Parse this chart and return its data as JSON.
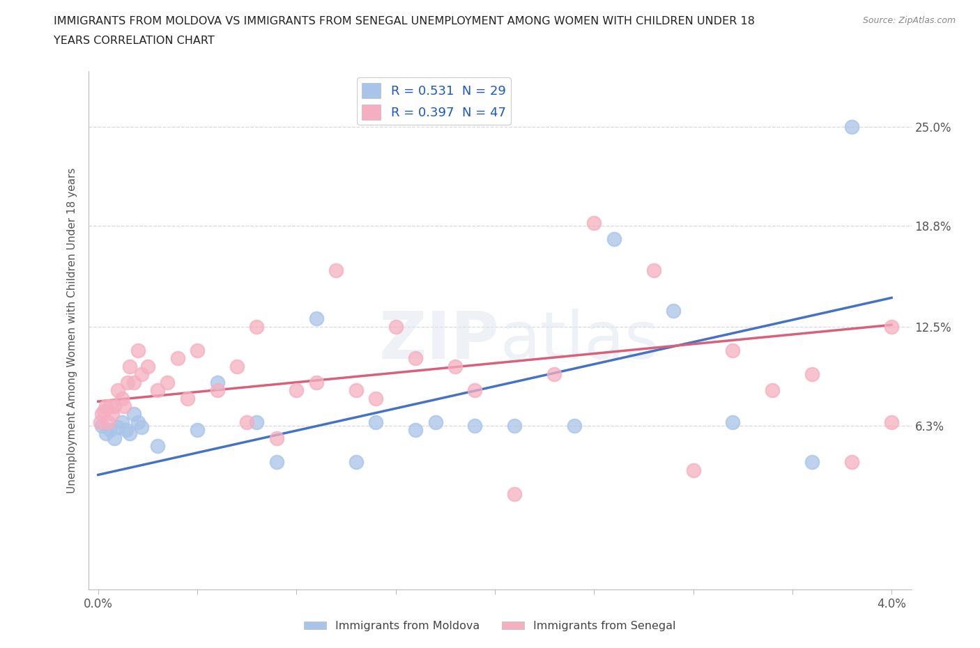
{
  "title_line1": "IMMIGRANTS FROM MOLDOVA VS IMMIGRANTS FROM SENEGAL UNEMPLOYMENT AMONG WOMEN WITH CHILDREN UNDER 18",
  "title_line2": "YEARS CORRELATION CHART",
  "source": "Source: ZipAtlas.com",
  "ylabel": "Unemployment Among Women with Children Under 18 years",
  "xlim": [
    -0.0005,
    0.041
  ],
  "ylim": [
    -0.04,
    0.285
  ],
  "xticks": [
    0.0,
    0.005,
    0.01,
    0.015,
    0.02,
    0.025,
    0.03,
    0.035,
    0.04
  ],
  "xtick_labels": [
    "0.0%",
    "",
    "",
    "",
    "",
    "",
    "",
    "",
    "4.0%"
  ],
  "ytick_positions": [
    0.063,
    0.125,
    0.188,
    0.25
  ],
  "ytick_labels": [
    "6.3%",
    "12.5%",
    "18.8%",
    "25.0%"
  ],
  "moldova_color": "#a8c4e8",
  "senegal_color": "#f5afc0",
  "moldova_line_color": "#4472c4",
  "senegal_line_color": "#d9607a",
  "moldova_R": 0.531,
  "moldova_N": 29,
  "senegal_R": 0.397,
  "senegal_N": 47,
  "watermark": "ZIPatlas",
  "background_color": "#ffffff",
  "grid_color": "#d8d8d8",
  "moldova_x": [
    0.0002,
    0.0004,
    0.0006,
    0.0008,
    0.001,
    0.0012,
    0.0014,
    0.0016,
    0.0018,
    0.002,
    0.0022,
    0.003,
    0.005,
    0.006,
    0.008,
    0.009,
    0.011,
    0.013,
    0.014,
    0.016,
    0.017,
    0.019,
    0.021,
    0.024,
    0.026,
    0.029,
    0.032,
    0.036,
    0.038
  ],
  "moldova_y": [
    0.063,
    0.058,
    0.06,
    0.055,
    0.062,
    0.065,
    0.06,
    0.058,
    0.07,
    0.065,
    0.062,
    0.05,
    0.06,
    0.09,
    0.065,
    0.04,
    0.13,
    0.04,
    0.065,
    0.06,
    0.065,
    0.063,
    0.063,
    0.063,
    0.18,
    0.135,
    0.065,
    0.04,
    0.25
  ],
  "senegal_x": [
    0.0001,
    0.0002,
    0.0003,
    0.0004,
    0.0005,
    0.0006,
    0.0007,
    0.0008,
    0.001,
    0.0012,
    0.0013,
    0.0015,
    0.0016,
    0.0018,
    0.002,
    0.0022,
    0.0025,
    0.003,
    0.0035,
    0.004,
    0.0045,
    0.005,
    0.006,
    0.007,
    0.0075,
    0.008,
    0.009,
    0.01,
    0.011,
    0.012,
    0.013,
    0.014,
    0.015,
    0.016,
    0.018,
    0.019,
    0.021,
    0.023,
    0.025,
    0.028,
    0.03,
    0.032,
    0.034,
    0.036,
    0.038,
    0.04,
    0.04
  ],
  "senegal_y": [
    0.065,
    0.07,
    0.072,
    0.075,
    0.065,
    0.075,
    0.07,
    0.075,
    0.085,
    0.08,
    0.075,
    0.09,
    0.1,
    0.09,
    0.11,
    0.095,
    0.1,
    0.085,
    0.09,
    0.105,
    0.08,
    0.11,
    0.085,
    0.1,
    0.065,
    0.125,
    0.055,
    0.085,
    0.09,
    0.16,
    0.085,
    0.08,
    0.125,
    0.105,
    0.1,
    0.085,
    0.02,
    0.095,
    0.19,
    0.16,
    0.035,
    0.11,
    0.085,
    0.095,
    0.04,
    0.125,
    0.065
  ],
  "moldova_trend_x0": 0.0,
  "moldova_trend_y0": 0.032,
  "moldova_trend_x1": 0.04,
  "moldova_trend_y1": 0.143,
  "senegal_trend_x0": 0.0,
  "senegal_trend_y0": 0.078,
  "senegal_trend_x1": 0.04,
  "senegal_trend_y1": 0.126
}
